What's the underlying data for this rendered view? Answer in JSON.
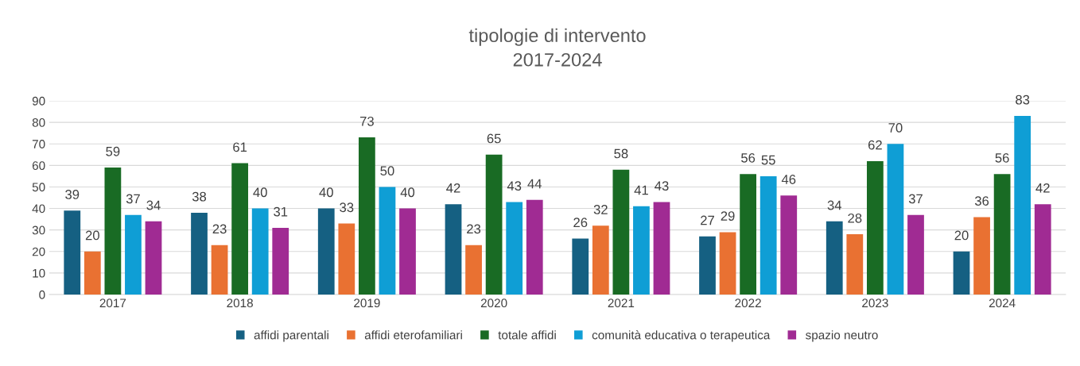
{
  "chart_data": {
    "type": "bar",
    "title": "tipologie di intervento\n2017-2024",
    "categories": [
      "2017",
      "2018",
      "2019",
      "2020",
      "2021",
      "2022",
      "2023",
      "2024"
    ],
    "series": [
      {
        "name": "affidi parentali",
        "color": "#156082",
        "values": [
          39,
          38,
          40,
          42,
          26,
          27,
          34,
          20
        ]
      },
      {
        "name": "affidi eterofamiliari",
        "color": "#e97132",
        "values": [
          20,
          23,
          33,
          23,
          32,
          29,
          28,
          36
        ]
      },
      {
        "name": "totale affidi",
        "color": "#196b24",
        "values": [
          59,
          61,
          73,
          65,
          58,
          56,
          62,
          56
        ]
      },
      {
        "name": "comunità educativa o terapeutica",
        "color": "#0f9ed5",
        "values": [
          37,
          40,
          50,
          43,
          41,
          55,
          70,
          83
        ]
      },
      {
        "name": "spazio neutro",
        "color": "#a02b93",
        "values": [
          34,
          31,
          40,
          44,
          43,
          46,
          37,
          42
        ]
      }
    ],
    "ylim": [
      0,
      90
    ],
    "yticks": [
      0,
      10,
      20,
      30,
      40,
      50,
      60,
      70,
      80,
      90
    ],
    "grid": "y",
    "legend": "bottom",
    "data_labels": true
  }
}
